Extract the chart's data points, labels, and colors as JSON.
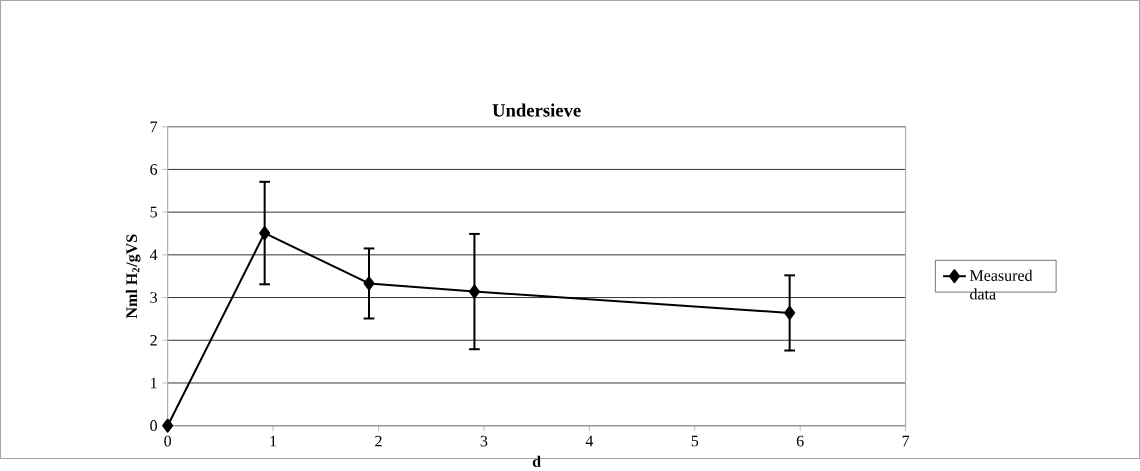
{
  "chart_data": {
    "type": "line",
    "title": "Undersieve",
    "xlabel": "d",
    "ylabel": "Nml H$_{2}$/gVS",
    "x": [
      0,
      0.92,
      1.91,
      2.91,
      5.9
    ],
    "series": [
      {
        "name": "Measured data",
        "color": "#000000",
        "values": [
          0,
          4.51,
          3.33,
          3.14,
          2.64
        ],
        "errors": [
          null,
          1.2,
          0.82,
          1.35,
          0.88
        ]
      }
    ],
    "xlim": [
      0,
      7
    ],
    "ylim": [
      0,
      7
    ],
    "xticks": [
      0,
      1,
      2,
      3,
      4,
      5,
      6,
      7
    ],
    "yticks": [
      0,
      1,
      2,
      3,
      4,
      5,
      6,
      7
    ],
    "grid": "y",
    "legend": "right",
    "marker": "diamond",
    "line_style": "solid"
  }
}
